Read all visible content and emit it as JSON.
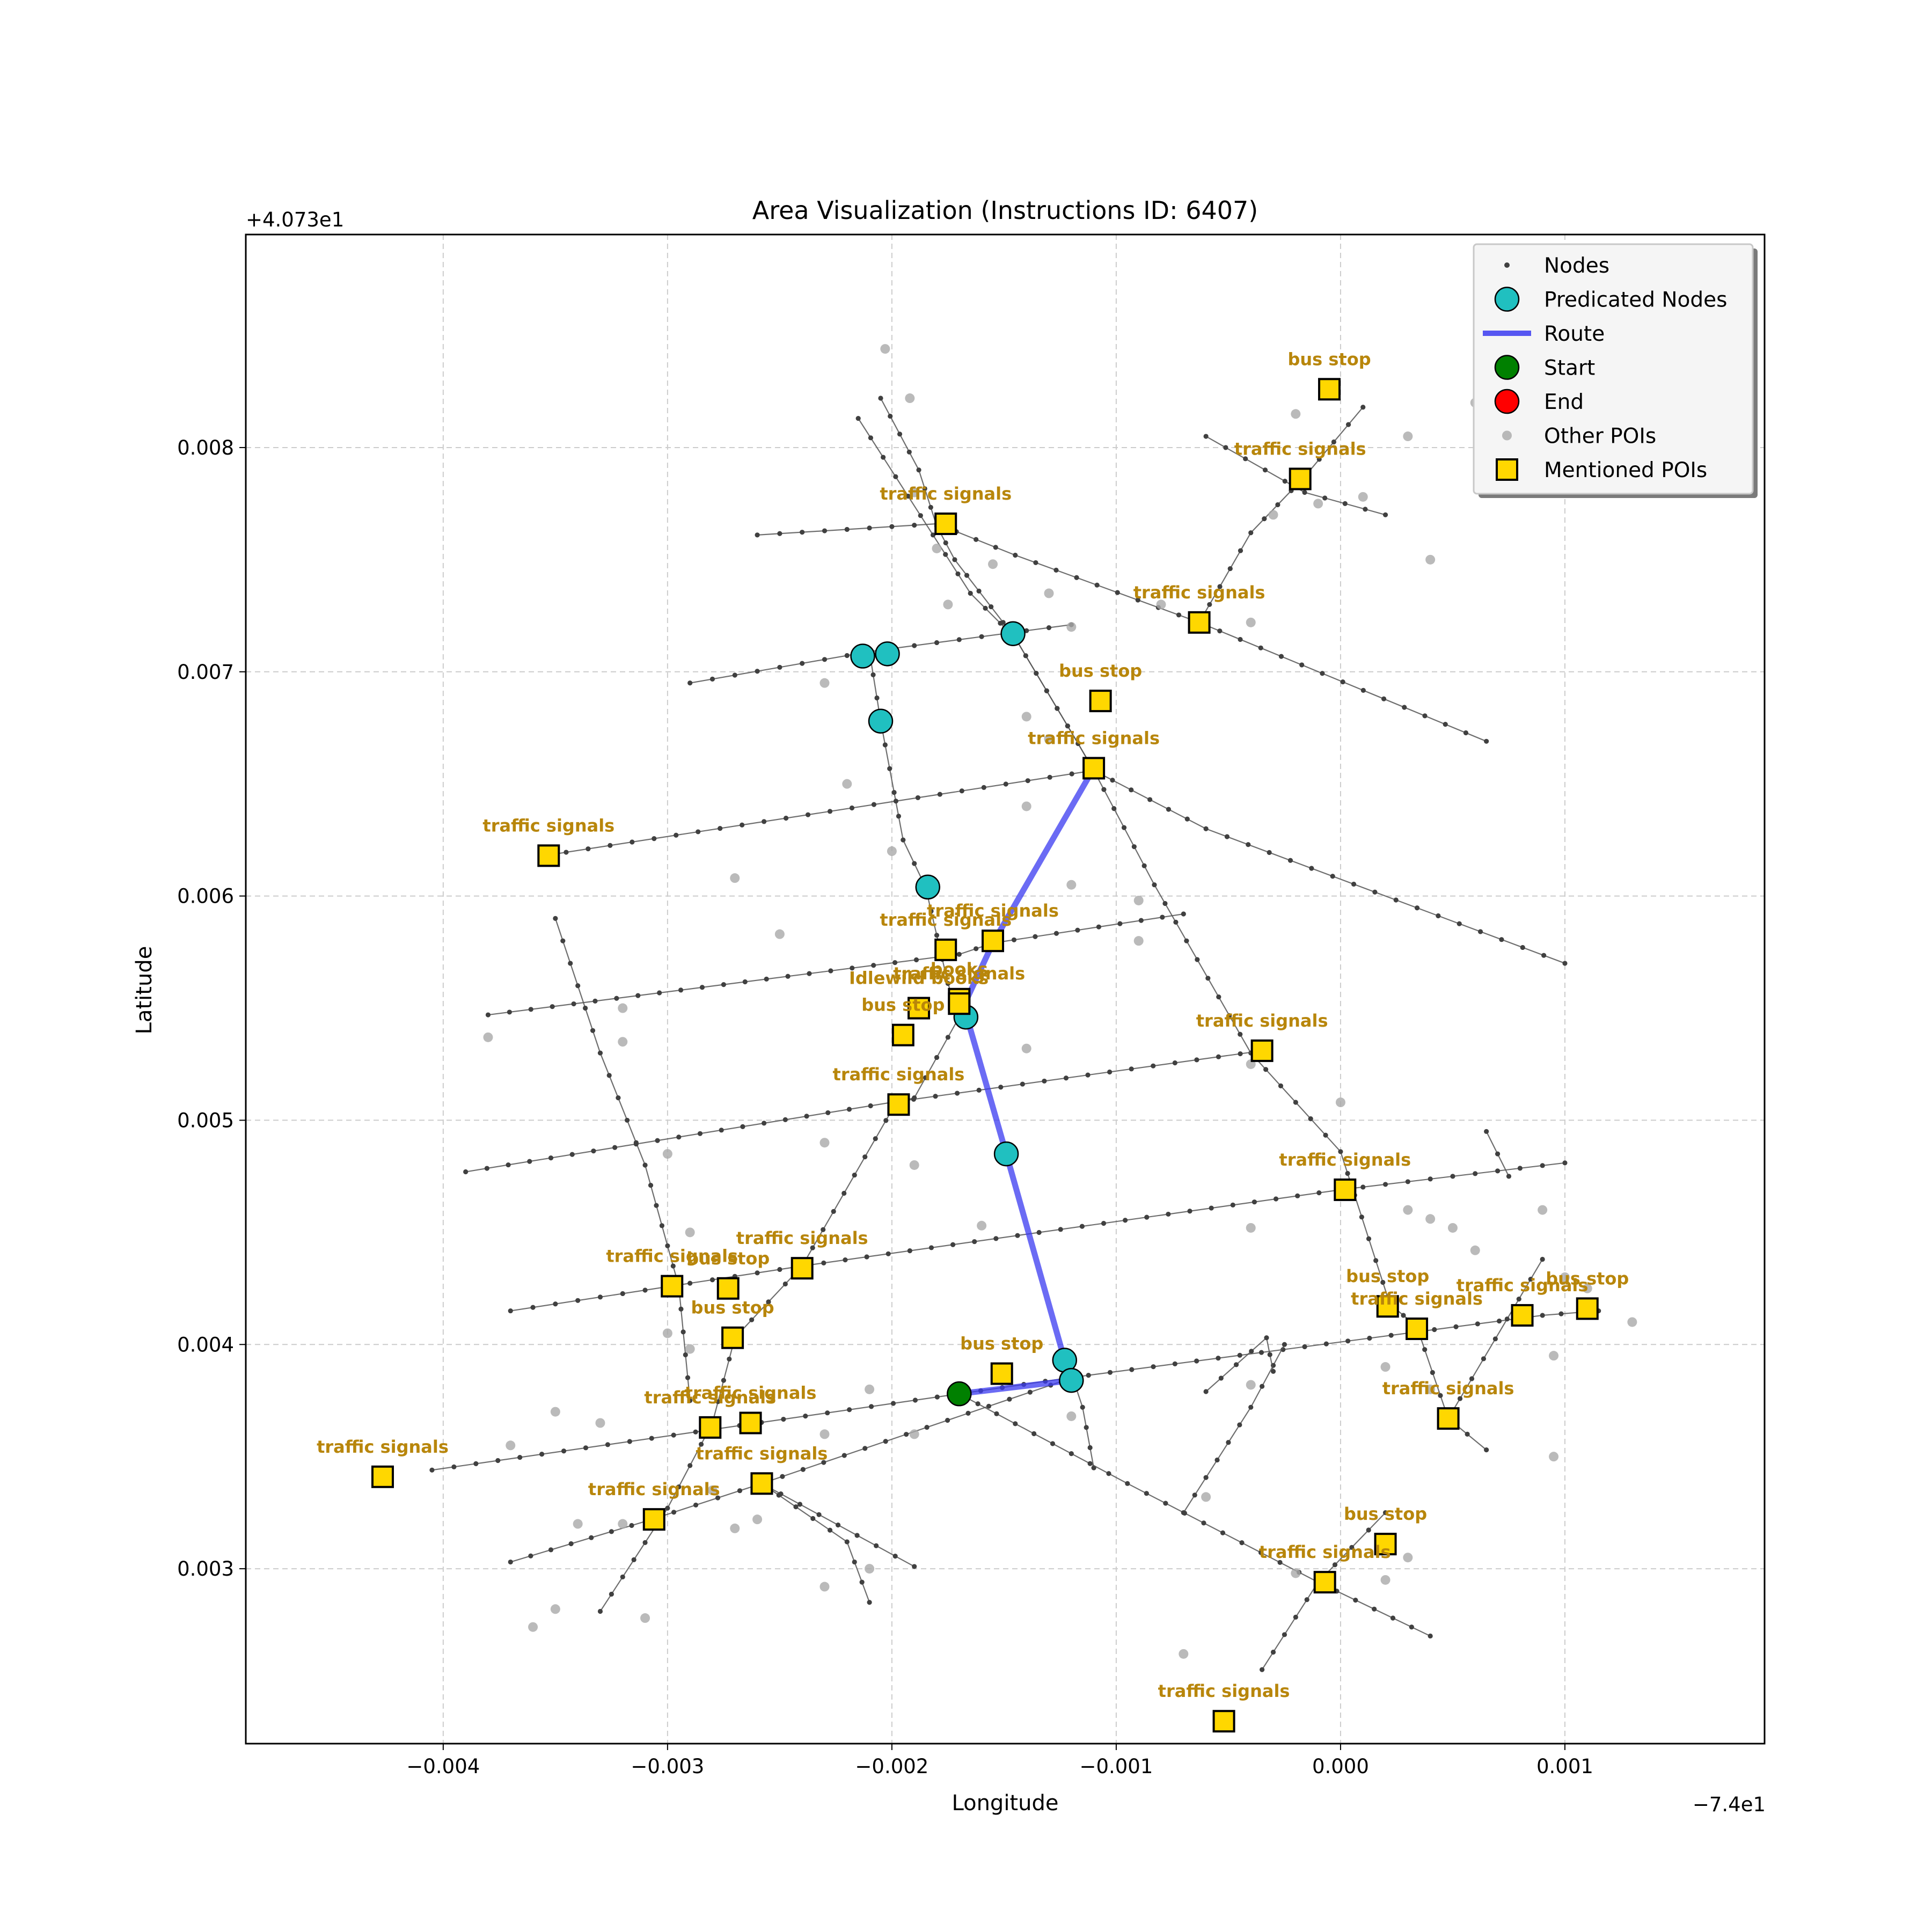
{
  "chart_data": {
    "type": "scatter",
    "title": "Area Visualization (Instructions ID: 6407)",
    "xlabel": "Longitude",
    "ylabel": "Latitude",
    "x_offset_label": "−7.4e1",
    "y_offset_label": "+4.073e1",
    "xlim": [
      -0.00488,
      0.00189
    ],
    "ylim": [
      0.00222,
      0.00895
    ],
    "x_ticks": [
      -0.004,
      -0.003,
      -0.002,
      -0.001,
      0.0,
      0.001
    ],
    "x_tick_labels": [
      "−0.004",
      "−0.003",
      "−0.002",
      "−0.001",
      "0.000",
      "0.001"
    ],
    "y_ticks": [
      0.003,
      0.004,
      0.005,
      0.006,
      0.007,
      0.008
    ],
    "y_tick_labels": [
      "0.003",
      "0.004",
      "0.005",
      "0.006",
      "0.007",
      "0.008"
    ],
    "grid": true,
    "legend_position": "top-right",
    "legend": [
      {
        "label": "Nodes",
        "marker": "small-dot",
        "color": "#404040"
      },
      {
        "label": "Predicated Nodes",
        "marker": "circle",
        "color": "#20c0c0"
      },
      {
        "label": "Route",
        "marker": "line",
        "color": "#3a3af0"
      },
      {
        "label": "Start",
        "marker": "circle",
        "color": "#008000"
      },
      {
        "label": "End",
        "marker": "circle",
        "color": "#ff0000"
      },
      {
        "label": "Other POIs",
        "marker": "circle",
        "color": "#a9a9a9"
      },
      {
        "label": "Mentioned POIs",
        "marker": "square",
        "color": "#ffd700"
      }
    ],
    "colors": {
      "node": "#404040",
      "edge": "#555555",
      "predicated": "#20c0c0",
      "route": "#3a3af0",
      "start": "#008000",
      "end": "#ff0000",
      "other_poi": "#a9a9a9",
      "mentioned_poi": "#ffd700",
      "poi_label": "#b8860b"
    },
    "roads": [
      [
        [
          -0.00215,
          0.00813
        ],
        [
          -0.00165,
          0.00735
        ],
        [
          -0.00145,
          0.00715
        ],
        [
          -0.00117,
          0.00668
        ],
        [
          -0.0011,
          0.00656
        ],
        [
          -0.00083,
          0.00605
        ],
        [
          -0.0004,
          0.0053
        ],
        [
          0.0,
          0.00486
        ],
        [
          0.00022,
          0.00418
        ],
        [
          0.00034,
          0.00408
        ],
        [
          0.00048,
          0.00367
        ],
        [
          0.00065,
          0.00353
        ]
      ],
      [
        [
          -0.00205,
          0.00822
        ],
        [
          -0.00188,
          0.0079
        ],
        [
          -0.0018,
          0.00765
        ],
        [
          -0.00172,
          0.0075
        ],
        [
          -0.00145,
          0.00715
        ],
        [
          -0.00117,
          0.00668
        ],
        [
          -0.0011,
          0.00656
        ]
      ],
      [
        [
          -0.0026,
          0.00761
        ],
        [
          -0.0018,
          0.00766
        ],
        [
          -0.00145,
          0.00752
        ],
        [
          -0.00063,
          0.00722
        ],
        [
          0.00065,
          0.00669
        ]
      ],
      [
        [
          -0.0029,
          0.00695
        ],
        [
          -0.0021,
          0.00709
        ],
        [
          -0.0012,
          0.00721
        ]
      ],
      [
        [
          -0.0021,
          0.00709
        ],
        [
          -0.00205,
          0.00678
        ],
        [
          -0.00195,
          0.00625
        ],
        [
          -0.00185,
          0.00604
        ],
        [
          -0.00175,
          0.00561
        ],
        [
          -0.0017,
          0.00546
        ],
        [
          -0.0019,
          0.0051
        ],
        [
          -0.00198,
          0.00508
        ],
        [
          -0.0024,
          0.00435
        ],
        [
          -0.0027,
          0.00403
        ],
        [
          -0.0028,
          0.00365
        ],
        [
          -0.003,
          0.00327
        ],
        [
          -0.0033,
          0.00281
        ]
      ],
      [
        [
          -0.00355,
          0.00618
        ],
        [
          -0.0011,
          0.00656
        ],
        [
          -0.0006,
          0.0063
        ],
        [
          0.001,
          0.0057
        ]
      ],
      [
        [
          -0.0038,
          0.00547
        ],
        [
          -0.0017,
          0.00574
        ],
        [
          -0.00155,
          0.00579
        ],
        [
          -0.0007,
          0.00592
        ]
      ],
      [
        [
          -0.0035,
          0.0059
        ],
        [
          -0.0033,
          0.0053
        ],
        [
          -0.0031,
          0.0048
        ],
        [
          -0.00295,
          0.00426
        ],
        [
          -0.0029,
          0.00375
        ]
      ],
      [
        [
          -0.0039,
          0.00477
        ],
        [
          -0.002,
          0.00508
        ],
        [
          -0.00035,
          0.00531
        ]
      ],
      [
        [
          -0.0037,
          0.00415
        ],
        [
          -0.0024,
          0.00435
        ],
        [
          0.0,
          0.00469
        ],
        [
          0.001,
          0.00481
        ]
      ],
      [
        [
          -0.00405,
          0.00344
        ],
        [
          -0.0017,
          0.00378
        ],
        [
          -0.00122,
          0.00385
        ],
        [
          0.0009,
          0.00413
        ],
        [
          0.00115,
          0.00415
        ]
      ],
      [
        [
          -0.00122,
          0.00393
        ],
        [
          -0.00115,
          0.00372
        ],
        [
          -0.0011,
          0.00345
        ]
      ],
      [
        [
          -0.0037,
          0.00303
        ],
        [
          -0.00307,
          0.00322
        ],
        [
          -0.00258,
          0.00338
        ],
        [
          -0.0012,
          0.00385
        ]
      ],
      [
        [
          -0.00258,
          0.00338
        ],
        [
          -0.0022,
          0.00312
        ],
        [
          -0.0021,
          0.00285
        ]
      ],
      [
        [
          -0.00258,
          0.00338
        ],
        [
          -0.0019,
          0.00301
        ]
      ],
      [
        [
          -0.0017,
          0.00378
        ],
        [
          -0.00095,
          0.00338
        ],
        [
          -0.0001,
          0.00294
        ],
        [
          0.0004,
          0.0027
        ]
      ],
      [
        [
          -0.00035,
          0.00255
        ],
        [
          -0.0001,
          0.00294
        ],
        [
          0.0002,
          0.00325
        ]
      ],
      [
        [
          -0.0007,
          0.00325
        ],
        [
          -0.0004,
          0.00372
        ],
        [
          -0.00025,
          0.004
        ]
      ],
      [
        [
          -0.0006,
          0.00379
        ],
        [
          -0.00033,
          0.00403
        ],
        [
          -0.0003,
          0.00388
        ]
      ],
      [
        [
          -0.0006,
          0.00805
        ],
        [
          -0.00016,
          0.0078
        ],
        [
          0.0002,
          0.0077
        ]
      ],
      [
        [
          -0.00063,
          0.00722
        ],
        [
          -0.0004,
          0.00762
        ],
        [
          -0.00016,
          0.00787
        ],
        [
          0.0001,
          0.00818
        ]
      ],
      [
        [
          0.00048,
          0.00367
        ],
        [
          0.0009,
          0.00438
        ]
      ],
      [
        [
          0.00065,
          0.00495
        ],
        [
          0.00075,
          0.00475
        ]
      ]
    ],
    "predicated_nodes": [
      [
        -0.00213,
        0.00707
      ],
      [
        -0.00202,
        0.00708
      ],
      [
        -0.00146,
        0.00717
      ],
      [
        -0.00205,
        0.00678
      ],
      [
        -0.00184,
        0.00604
      ],
      [
        -0.00167,
        0.00546
      ],
      [
        -0.00149,
        0.00485
      ],
      [
        -0.00123,
        0.00393
      ],
      [
        -0.0012,
        0.00384
      ]
    ],
    "route": [
      [
        -0.0011,
        0.00657
      ],
      [
        -0.00155,
        0.00579
      ],
      [
        -0.00168,
        0.00551
      ],
      [
        -0.00149,
        0.00485
      ],
      [
        -0.00123,
        0.00393
      ],
      [
        -0.0012,
        0.00384
      ],
      [
        -0.0017,
        0.00378
      ]
    ],
    "start": [
      -0.0017,
      0.00378
    ],
    "other_pois": [
      [
        -0.00203,
        0.00844
      ],
      [
        -0.00192,
        0.00822
      ],
      [
        -0.0002,
        0.00815
      ],
      [
        0.0006,
        0.0082
      ],
      [
        0.0003,
        0.00805
      ],
      [
        -0.0019,
        0.0078
      ],
      [
        -0.0018,
        0.00755
      ],
      [
        -0.00155,
        0.00748
      ],
      [
        -0.00175,
        0.0073
      ],
      [
        -0.0013,
        0.00735
      ],
      [
        -0.0012,
        0.0072
      ],
      [
        -0.0008,
        0.0073
      ],
      [
        -0.00065,
        0.0072
      ],
      [
        -0.0004,
        0.00722
      ],
      [
        -0.0003,
        0.0077
      ],
      [
        -0.0001,
        0.00775
      ],
      [
        0.0001,
        0.00778
      ],
      [
        0.0004,
        0.0075
      ],
      [
        -0.0023,
        0.00695
      ],
      [
        -0.0014,
        0.0068
      ],
      [
        -0.0013,
        0.0067
      ],
      [
        -0.0022,
        0.0065
      ],
      [
        -0.002,
        0.0062
      ],
      [
        -0.0014,
        0.0064
      ],
      [
        -0.0012,
        0.00605
      ],
      [
        -0.0027,
        0.00608
      ],
      [
        -0.0025,
        0.00583
      ],
      [
        -0.0009,
        0.0058
      ],
      [
        -0.0009,
        0.00598
      ],
      [
        -0.0032,
        0.0055
      ],
      [
        -0.0032,
        0.00535
      ],
      [
        -0.0038,
        0.00537
      ],
      [
        -0.0014,
        0.00532
      ],
      [
        -0.0004,
        0.00525
      ],
      [
        0.0,
        0.00508
      ],
      [
        -0.0023,
        0.0049
      ],
      [
        -0.0019,
        0.0048
      ],
      [
        -0.003,
        0.00485
      ],
      [
        -0.0016,
        0.00453
      ],
      [
        -0.0004,
        0.00452
      ],
      [
        -0.0029,
        0.0045
      ],
      [
        0.0003,
        0.0046
      ],
      [
        0.0004,
        0.00456
      ],
      [
        0.0005,
        0.00452
      ],
      [
        0.0006,
        0.00442
      ],
      [
        0.0009,
        0.0046
      ],
      [
        0.001,
        0.0043
      ],
      [
        0.0011,
        0.00425
      ],
      [
        0.0013,
        0.0041
      ],
      [
        -0.003,
        0.00405
      ],
      [
        -0.0029,
        0.00398
      ],
      [
        -0.0033,
        0.00365
      ],
      [
        -0.0035,
        0.0037
      ],
      [
        -0.0021,
        0.0038
      ],
      [
        -0.0023,
        0.0036
      ],
      [
        -0.0019,
        0.0036
      ],
      [
        -0.0012,
        0.00368
      ],
      [
        -0.0004,
        0.00382
      ],
      [
        0.0002,
        0.0039
      ],
      [
        0.0004,
        0.0038
      ],
      [
        0.00095,
        0.00395
      ],
      [
        0.00095,
        0.0035
      ],
      [
        -0.0032,
        0.0032
      ],
      [
        -0.0034,
        0.0032
      ],
      [
        -0.0028,
        0.00335
      ],
      [
        -0.0026,
        0.00322
      ],
      [
        -0.0027,
        0.00318
      ],
      [
        -0.0021,
        0.003
      ],
      [
        -0.0023,
        0.00292
      ],
      [
        -0.0035,
        0.00282
      ],
      [
        -0.0036,
        0.00274
      ],
      [
        -0.0031,
        0.00278
      ],
      [
        -0.0007,
        0.00262
      ],
      [
        -0.0006,
        0.00332
      ],
      [
        0.0002,
        0.00295
      ],
      [
        0.0003,
        0.00305
      ],
      [
        -0.0002,
        0.00298
      ],
      [
        -0.0037,
        0.00355
      ]
    ],
    "mentioned_pois": [
      {
        "label": "bus stop",
        "x": -5e-05,
        "y": 0.00826
      },
      {
        "label": "traffic signals",
        "x": -0.00018,
        "y": 0.00786
      },
      {
        "label": "traffic signals",
        "x": -0.00176,
        "y": 0.00766
      },
      {
        "label": "traffic signals",
        "x": -0.00063,
        "y": 0.00722
      },
      {
        "label": "bus stop",
        "x": -0.00107,
        "y": 0.00687
      },
      {
        "label": "traffic signals",
        "x": -0.0011,
        "y": 0.00657
      },
      {
        "label": "traffic signals",
        "x": -0.00353,
        "y": 0.00618
      },
      {
        "label": "traffic signals",
        "x": -0.00155,
        "y": 0.0058
      },
      {
        "label": "traffic signals",
        "x": -0.00176,
        "y": 0.00576
      },
      {
        "label": "books",
        "x": -0.0017,
        "y": 0.00554
      },
      {
        "label": "Idlewild books",
        "x": -0.00188,
        "y": 0.0055
      },
      {
        "label": "traffic signals",
        "x": -0.0017,
        "y": 0.00552
      },
      {
        "label": "bus stop",
        "x": -0.00195,
        "y": 0.00538
      },
      {
        "label": "traffic signals",
        "x": -0.00035,
        "y": 0.00531
      },
      {
        "label": "traffic signals",
        "x": -0.00197,
        "y": 0.00507
      },
      {
        "label": "traffic signals",
        "x": 2e-05,
        "y": 0.00469
      },
      {
        "label": "traffic signals",
        "x": -0.0024,
        "y": 0.00434
      },
      {
        "label": "traffic signals",
        "x": -0.00298,
        "y": 0.00426
      },
      {
        "label": "bus stop",
        "x": -0.00273,
        "y": 0.00425
      },
      {
        "label": "bus stop",
        "x": -0.00271,
        "y": 0.00403
      },
      {
        "label": "bus stop",
        "x": 0.00021,
        "y": 0.00417
      },
      {
        "label": "traffic signals",
        "x": 0.00034,
        "y": 0.00407
      },
      {
        "label": "traffic signals",
        "x": 0.00081,
        "y": 0.00413
      },
      {
        "label": "bus stop",
        "x": 0.0011,
        "y": 0.00416
      },
      {
        "label": "bus stop",
        "x": -0.00151,
        "y": 0.00387
      },
      {
        "label": "traffic signals",
        "x": 0.00048,
        "y": 0.00367
      },
      {
        "label": "traffic signals",
        "x": -0.00281,
        "y": 0.00363
      },
      {
        "label": "traffic signals",
        "x": -0.00263,
        "y": 0.00365
      },
      {
        "label": "traffic signals",
        "x": -0.00258,
        "y": 0.00338
      },
      {
        "label": "traffic signals",
        "x": -0.00427,
        "y": 0.00341
      },
      {
        "label": "traffic signals",
        "x": -0.00306,
        "y": 0.00322
      },
      {
        "label": "bus stop",
        "x": 0.0002,
        "y": 0.00311
      },
      {
        "label": "traffic signals",
        "x": -7e-05,
        "y": 0.00294
      },
      {
        "label": "traffic signals",
        "x": -0.00052,
        "y": 0.00232
      }
    ]
  }
}
